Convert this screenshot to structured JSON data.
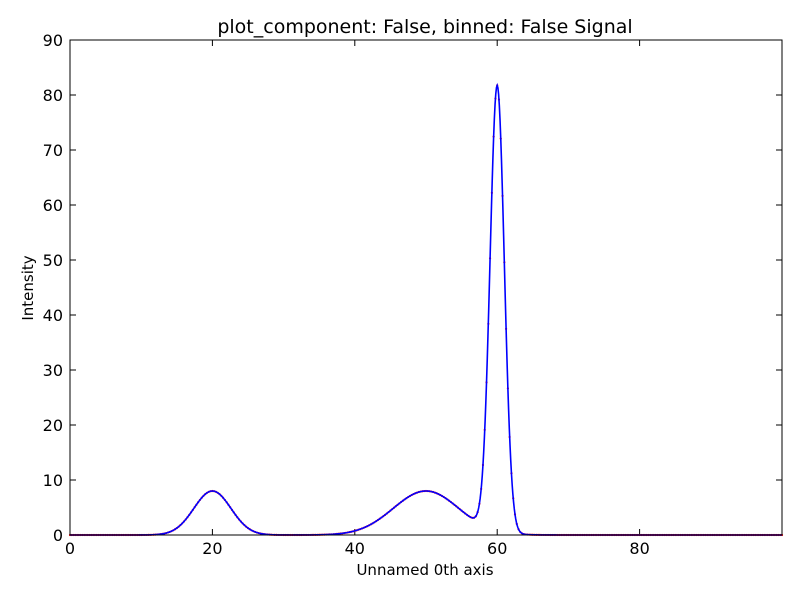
{
  "chart_data": {
    "type": "line",
    "title": "plot_component: False, binned: False Signal",
    "xlabel": "Unnamed 0th axis",
    "ylabel": "Intensity",
    "xlim": [
      0,
      100
    ],
    "ylim": [
      0,
      90
    ],
    "xticks": [
      0,
      20,
      40,
      60,
      80
    ],
    "yticks": [
      0,
      10,
      20,
      30,
      40,
      50,
      60,
      70,
      80,
      90
    ],
    "grid": false,
    "legend": false,
    "series": [
      {
        "style": "points",
        "color": "#ff0000",
        "components": [
          {
            "shape": "gaussian",
            "center": 20,
            "height": 8,
            "sigma": 2.6
          },
          {
            "shape": "gaussian",
            "center": 50,
            "height": 8,
            "sigma": 4.6
          },
          {
            "shape": "gaussian",
            "center": 60,
            "height": 81,
            "sigma": 1.0
          }
        ]
      },
      {
        "style": "line",
        "color": "#0000ff",
        "components": [
          {
            "shape": "gaussian",
            "center": 20,
            "height": 8,
            "sigma": 2.6
          },
          {
            "shape": "gaussian",
            "center": 50,
            "height": 8,
            "sigma": 4.6
          },
          {
            "shape": "gaussian",
            "center": 60,
            "height": 81,
            "sigma": 1.0
          }
        ]
      }
    ]
  }
}
